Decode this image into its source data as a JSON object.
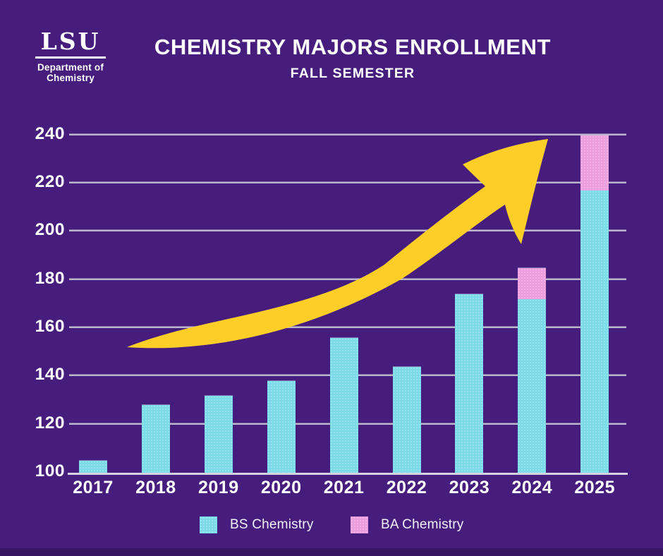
{
  "brand": {
    "logo_text": "LSU",
    "logo_line1": "Department of",
    "logo_line2": "Chemistry"
  },
  "header": {
    "title": "CHEMISTRY MAJORS ENROLLMENT",
    "subtitle": "FALL SEMESTER"
  },
  "legend": [
    {
      "label": "BS Chemistry",
      "color": "#7cdbe8"
    },
    {
      "label": "BA Chemistry",
      "color": "#ec9ede"
    }
  ],
  "colors": {
    "background": "#461d7c",
    "bottom_strip": "#38155f",
    "bar_bs": "#7cdbe8",
    "bar_ba": "#ec9ede",
    "arrow_gold": "#fcce27",
    "gridline": "#bcb6ca",
    "text": "#ffffff"
  },
  "chart_data": {
    "type": "bar",
    "stacked": true,
    "title": "CHEMISTRY MAJORS ENROLLMENT",
    "subtitle": "FALL SEMESTER",
    "categories": [
      "2017",
      "2018",
      "2019",
      "2020",
      "2021",
      "2022",
      "2023",
      "2024",
      "2025"
    ],
    "series": [
      {
        "name": "BS Chemistry",
        "color": "#7cdbe8",
        "values": [
          105,
          128,
          132,
          138,
          156,
          144,
          174,
          172,
          217
        ]
      },
      {
        "name": "BA Chemistry",
        "color": "#ec9ede",
        "values": [
          0,
          0,
          0,
          0,
          0,
          0,
          0,
          13,
          23
        ]
      }
    ],
    "series_note": "BS values are totals read from axis; BA values are the additional stacked amount. Stacked totals: 2024 = 185, 2025 = 240.",
    "xlabel": "",
    "ylabel": "",
    "ylim": [
      100,
      240
    ],
    "yticks": [
      100,
      120,
      140,
      160,
      180,
      200,
      220,
      240
    ],
    "grid": true,
    "legend_position": "bottom",
    "annotations": [
      "large yellow curved arrow indicating upward enrollment trend"
    ]
  }
}
